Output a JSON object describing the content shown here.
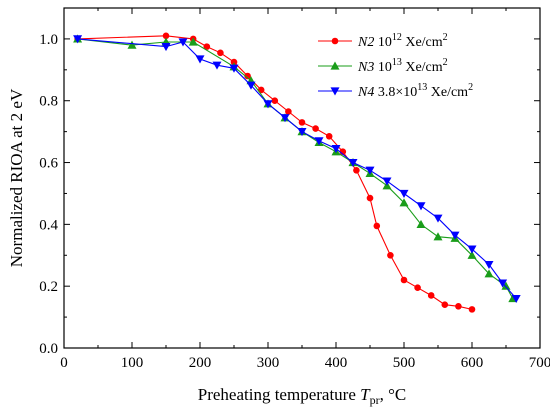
{
  "chart_data": {
    "type": "line",
    "xlabel": {
      "prefix": "Preheating temperature ",
      "var": "T",
      "sub": "pr",
      "suffix": ", °C"
    },
    "ylabel": "Normalized RIOA at 2 eV",
    "xlim": [
      0,
      700
    ],
    "ylim": [
      0.0,
      1.1
    ],
    "xticks": [
      0,
      100,
      200,
      300,
      400,
      500,
      600,
      700
    ],
    "yticks": [
      0.0,
      0.2,
      0.4,
      0.6,
      0.8,
      1.0
    ],
    "xtick_labels": [
      "0",
      "100",
      "200",
      "300",
      "400",
      "500",
      "600",
      "700"
    ],
    "ytick_labels": [
      "0.0",
      "0.2",
      "0.4",
      "0.6",
      "0.8",
      "1.0"
    ],
    "grid": false,
    "legend_position": "top-right",
    "series": [
      {
        "name": "N2",
        "legend": {
          "italic": "N2",
          "mant": "10",
          "exp": "12",
          "unit": "Xe/cm",
          "unit_exp": "2"
        },
        "color": "#ff0000",
        "marker": "circle",
        "x": [
          20,
          150,
          190,
          210,
          230,
          250,
          270,
          290,
          310,
          330,
          350,
          370,
          390,
          410,
          430,
          450,
          460,
          480,
          500,
          520,
          540,
          560,
          580,
          600
        ],
        "y": [
          1.0,
          1.01,
          1.0,
          0.975,
          0.955,
          0.925,
          0.88,
          0.835,
          0.8,
          0.765,
          0.73,
          0.71,
          0.685,
          0.635,
          0.575,
          0.485,
          0.395,
          0.3,
          0.22,
          0.195,
          0.17,
          0.14,
          0.135,
          0.125
        ]
      },
      {
        "name": "N3",
        "legend": {
          "italic": "N3",
          "mant": "10",
          "exp": "13",
          "unit": "Xe/cm",
          "unit_exp": "2"
        },
        "color": "#1a9d1a",
        "marker": "triangle-up",
        "x": [
          20,
          100,
          150,
          190,
          250,
          275,
          300,
          325,
          350,
          375,
          400,
          425,
          450,
          475,
          500,
          525,
          550,
          575,
          600,
          625,
          650,
          660
        ],
        "y": [
          1.0,
          0.98,
          0.99,
          0.99,
          0.91,
          0.865,
          0.79,
          0.745,
          0.7,
          0.665,
          0.635,
          0.6,
          0.565,
          0.525,
          0.47,
          0.4,
          0.36,
          0.355,
          0.3,
          0.24,
          0.2,
          0.16
        ]
      },
      {
        "name": "N4",
        "legend": {
          "italic": "N4",
          "mant": "3.8×10",
          "exp": "13",
          "unit": "Xe/cm",
          "unit_exp": "2"
        },
        "color": "#0000ff",
        "marker": "triangle-down",
        "x": [
          20,
          150,
          175,
          200,
          225,
          250,
          275,
          300,
          325,
          350,
          375,
          400,
          425,
          450,
          475,
          500,
          525,
          550,
          575,
          600,
          625,
          645,
          665
        ],
        "y": [
          1.0,
          0.975,
          0.99,
          0.935,
          0.915,
          0.905,
          0.85,
          0.79,
          0.745,
          0.7,
          0.67,
          0.645,
          0.6,
          0.575,
          0.54,
          0.5,
          0.46,
          0.42,
          0.365,
          0.32,
          0.27,
          0.21,
          0.16
        ]
      }
    ]
  }
}
